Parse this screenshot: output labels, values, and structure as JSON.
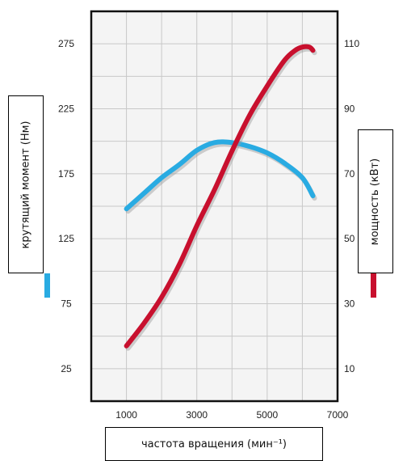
{
  "chart_data": {
    "type": "line",
    "title": "",
    "xlabel": "частота вращения (мин⁻¹)",
    "ylabel_left": "крутящий момент (Нм)",
    "ylabel_right": "мощность (кВт)",
    "xlim": [
      0,
      7000
    ],
    "ylim_left": [
      0,
      300
    ],
    "ylim_right": [
      0,
      120
    ],
    "x_ticks": [
      "1000",
      "3000",
      "5000",
      "7000"
    ],
    "y_left_ticks": [
      "25",
      "75",
      "125",
      "175",
      "225",
      "275"
    ],
    "y_right_ticks": [
      "10",
      "30",
      "50",
      "70",
      "90",
      "110"
    ],
    "grid": true,
    "series": [
      {
        "axis": "left",
        "color": "#29abe2",
        "x": [
          1000,
          1500,
          2000,
          2500,
          3000,
          3500,
          4000,
          4500,
          5000,
          5500,
          6000,
          6300
        ],
        "y": [
          148,
          160,
          172,
          182,
          193,
          199,
          199,
          196,
          191,
          183,
          172,
          158
        ]
      },
      {
        "axis": "right",
        "color": "#c8102e",
        "x": [
          1000,
          1500,
          2000,
          2500,
          3000,
          3500,
          4000,
          4500,
          5000,
          5500,
          5800,
          6000,
          6200,
          6300
        ],
        "y": [
          17,
          24,
          32,
          42,
          54,
          65,
          77,
          88,
          97,
          105,
          108,
          109,
          109,
          108
        ]
      }
    ]
  }
}
